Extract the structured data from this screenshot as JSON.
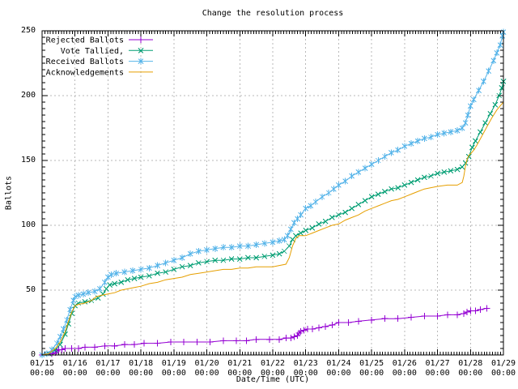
{
  "page": {
    "background": "#ffffff",
    "text_color": "#000000"
  },
  "chart_data": {
    "type": "line",
    "title": "Change the resolution process",
    "xlabel": "Date/Time (UTC)",
    "ylabel": "Ballots",
    "grid": {
      "show": true,
      "color": "#b8b8b8"
    },
    "border_color": "#000000",
    "legend_position": "top-left-inside",
    "x_axis": {
      "range_days": [
        0,
        14
      ],
      "tick_dates": [
        "01/15",
        "01/16",
        "01/17",
        "01/18",
        "01/19",
        "01/20",
        "01/21",
        "01/22",
        "01/23",
        "01/24",
        "01/25",
        "01/26",
        "01/27",
        "01/28",
        "01/29"
      ],
      "tick_time": "00:00",
      "minor_ticks_per_day": 12
    },
    "y_axis": {
      "range": [
        0,
        250
      ],
      "ticks": [
        0,
        50,
        100,
        150,
        200,
        250
      ],
      "minor_step": 5
    },
    "series": [
      {
        "name": "Rejected Ballots",
        "color": "#9400D3",
        "marker": "plus",
        "points": [
          [
            0,
            0
          ],
          [
            0.3,
            1
          ],
          [
            0.4,
            2
          ],
          [
            0.45,
            3
          ],
          [
            0.5,
            4
          ],
          [
            0.6,
            4
          ],
          [
            0.7,
            5
          ],
          [
            0.9,
            5
          ],
          [
            1.1,
            5
          ],
          [
            1.3,
            6
          ],
          [
            1.6,
            6
          ],
          [
            1.9,
            7
          ],
          [
            2.2,
            7
          ],
          [
            2.5,
            8
          ],
          [
            2.8,
            8
          ],
          [
            3.1,
            9
          ],
          [
            3.5,
            9
          ],
          [
            3.9,
            10
          ],
          [
            4.3,
            10
          ],
          [
            4.7,
            10
          ],
          [
            5.1,
            10
          ],
          [
            5.5,
            11
          ],
          [
            5.9,
            11
          ],
          [
            6.2,
            11
          ],
          [
            6.5,
            12
          ],
          [
            6.9,
            12
          ],
          [
            7.2,
            12
          ],
          [
            7.4,
            13
          ],
          [
            7.55,
            13
          ],
          [
            7.65,
            14
          ],
          [
            7.75,
            15
          ],
          [
            7.8,
            17
          ],
          [
            7.85,
            18
          ],
          [
            7.95,
            19
          ],
          [
            8.05,
            20
          ],
          [
            8.2,
            20
          ],
          [
            8.4,
            21
          ],
          [
            8.6,
            22
          ],
          [
            8.8,
            23
          ],
          [
            9.0,
            25
          ],
          [
            9.3,
            25
          ],
          [
            9.6,
            26
          ],
          [
            10.0,
            27
          ],
          [
            10.4,
            28
          ],
          [
            10.8,
            28
          ],
          [
            11.2,
            29
          ],
          [
            11.6,
            30
          ],
          [
            12.0,
            30
          ],
          [
            12.3,
            31
          ],
          [
            12.6,
            31
          ],
          [
            12.8,
            32
          ],
          [
            12.9,
            33
          ],
          [
            13.0,
            34
          ],
          [
            13.15,
            34
          ],
          [
            13.3,
            35
          ],
          [
            13.5,
            36
          ]
        ]
      },
      {
        "name": "Vote Tallied,",
        "color": "#009E73",
        "marker": "cross",
        "points": [
          [
            0,
            0
          ],
          [
            0.2,
            1
          ],
          [
            0.4,
            4
          ],
          [
            0.55,
            8
          ],
          [
            0.7,
            16
          ],
          [
            0.8,
            24
          ],
          [
            0.9,
            32
          ],
          [
            1.0,
            38
          ],
          [
            1.1,
            40
          ],
          [
            1.3,
            41
          ],
          [
            1.5,
            42
          ],
          [
            1.7,
            44
          ],
          [
            1.85,
            47
          ],
          [
            1.95,
            51
          ],
          [
            2.05,
            54
          ],
          [
            2.2,
            55
          ],
          [
            2.4,
            56
          ],
          [
            2.6,
            58
          ],
          [
            2.8,
            59
          ],
          [
            3.0,
            60
          ],
          [
            3.25,
            61
          ],
          [
            3.5,
            63
          ],
          [
            3.75,
            64
          ],
          [
            4.0,
            66
          ],
          [
            4.25,
            68
          ],
          [
            4.5,
            69
          ],
          [
            4.75,
            71
          ],
          [
            5.0,
            72
          ],
          [
            5.25,
            73
          ],
          [
            5.5,
            73
          ],
          [
            5.75,
            74
          ],
          [
            6.0,
            74
          ],
          [
            6.25,
            75
          ],
          [
            6.5,
            75
          ],
          [
            6.75,
            76
          ],
          [
            7.0,
            77
          ],
          [
            7.2,
            78
          ],
          [
            7.35,
            80
          ],
          [
            7.5,
            84
          ],
          [
            7.6,
            89
          ],
          [
            7.7,
            92
          ],
          [
            7.85,
            94
          ],
          [
            8.0,
            96
          ],
          [
            8.2,
            98
          ],
          [
            8.4,
            101
          ],
          [
            8.6,
            103
          ],
          [
            8.8,
            106
          ],
          [
            9.0,
            108
          ],
          [
            9.2,
            110
          ],
          [
            9.4,
            113
          ],
          [
            9.6,
            116
          ],
          [
            9.8,
            119
          ],
          [
            10.0,
            122
          ],
          [
            10.2,
            124
          ],
          [
            10.4,
            126
          ],
          [
            10.6,
            128
          ],
          [
            10.8,
            129
          ],
          [
            11.0,
            131
          ],
          [
            11.2,
            133
          ],
          [
            11.4,
            135
          ],
          [
            11.6,
            137
          ],
          [
            11.8,
            138
          ],
          [
            12.0,
            140
          ],
          [
            12.2,
            141
          ],
          [
            12.4,
            142
          ],
          [
            12.6,
            143
          ],
          [
            12.75,
            145
          ],
          [
            12.85,
            148
          ],
          [
            12.95,
            153
          ],
          [
            13.05,
            160
          ],
          [
            13.15,
            165
          ],
          [
            13.3,
            172
          ],
          [
            13.45,
            179
          ],
          [
            13.6,
            186
          ],
          [
            13.75,
            193
          ],
          [
            13.87,
            200
          ],
          [
            13.95,
            206
          ],
          [
            14.0,
            211
          ]
        ]
      },
      {
        "name": "Received Ballots",
        "color": "#56B4E9",
        "marker": "star",
        "points": [
          [
            0,
            0
          ],
          [
            0.15,
            1
          ],
          [
            0.3,
            4
          ],
          [
            0.45,
            9
          ],
          [
            0.55,
            14
          ],
          [
            0.65,
            20
          ],
          [
            0.75,
            27
          ],
          [
            0.85,
            35
          ],
          [
            0.95,
            42
          ],
          [
            1.0,
            45
          ],
          [
            1.1,
            46
          ],
          [
            1.25,
            47
          ],
          [
            1.4,
            48
          ],
          [
            1.6,
            49
          ],
          [
            1.75,
            51
          ],
          [
            1.9,
            56
          ],
          [
            2.0,
            60
          ],
          [
            2.1,
            62
          ],
          [
            2.25,
            63
          ],
          [
            2.5,
            64
          ],
          [
            2.75,
            65
          ],
          [
            3.0,
            66
          ],
          [
            3.25,
            67
          ],
          [
            3.5,
            69
          ],
          [
            3.75,
            71
          ],
          [
            4.0,
            73
          ],
          [
            4.25,
            75
          ],
          [
            4.5,
            78
          ],
          [
            4.75,
            80
          ],
          [
            5.0,
            81
          ],
          [
            5.25,
            82
          ],
          [
            5.5,
            83
          ],
          [
            5.75,
            83
          ],
          [
            6.0,
            84
          ],
          [
            6.25,
            84
          ],
          [
            6.5,
            85
          ],
          [
            6.75,
            86
          ],
          [
            7.0,
            87
          ],
          [
            7.2,
            88
          ],
          [
            7.35,
            89
          ],
          [
            7.45,
            92
          ],
          [
            7.55,
            97
          ],
          [
            7.65,
            102
          ],
          [
            7.75,
            105
          ],
          [
            7.85,
            108
          ],
          [
            8.0,
            113
          ],
          [
            8.15,
            115
          ],
          [
            8.3,
            118
          ],
          [
            8.5,
            122
          ],
          [
            8.7,
            125
          ],
          [
            8.85,
            128
          ],
          [
            9.0,
            131
          ],
          [
            9.2,
            134
          ],
          [
            9.4,
            138
          ],
          [
            9.6,
            141
          ],
          [
            9.8,
            144
          ],
          [
            10.0,
            147
          ],
          [
            10.2,
            150
          ],
          [
            10.4,
            153
          ],
          [
            10.6,
            156
          ],
          [
            10.8,
            158
          ],
          [
            11.0,
            161
          ],
          [
            11.2,
            163
          ],
          [
            11.4,
            165
          ],
          [
            11.6,
            167
          ],
          [
            11.8,
            168
          ],
          [
            12.0,
            170
          ],
          [
            12.2,
            171
          ],
          [
            12.4,
            172
          ],
          [
            12.6,
            173
          ],
          [
            12.75,
            175
          ],
          [
            12.85,
            179
          ],
          [
            12.92,
            185
          ],
          [
            13.0,
            192
          ],
          [
            13.1,
            197
          ],
          [
            13.25,
            204
          ],
          [
            13.4,
            211
          ],
          [
            13.55,
            219
          ],
          [
            13.7,
            227
          ],
          [
            13.8,
            233
          ],
          [
            13.9,
            239
          ],
          [
            13.97,
            246
          ],
          [
            14.0,
            249
          ]
        ]
      },
      {
        "name": "Acknowledgements",
        "color": "#E69F00",
        "marker": "none",
        "points": [
          [
            0,
            0
          ],
          [
            0.2,
            1
          ],
          [
            0.4,
            5
          ],
          [
            0.55,
            10
          ],
          [
            0.7,
            18
          ],
          [
            0.8,
            26
          ],
          [
            0.9,
            33
          ],
          [
            1.0,
            38
          ],
          [
            1.1,
            39
          ],
          [
            1.3,
            40
          ],
          [
            1.5,
            42
          ],
          [
            1.65,
            45
          ],
          [
            1.8,
            46
          ],
          [
            2.0,
            47
          ],
          [
            2.2,
            48
          ],
          [
            2.4,
            50
          ],
          [
            2.6,
            51
          ],
          [
            2.8,
            52
          ],
          [
            3.0,
            53
          ],
          [
            3.25,
            55
          ],
          [
            3.5,
            56
          ],
          [
            3.75,
            58
          ],
          [
            4.0,
            59
          ],
          [
            4.25,
            60
          ],
          [
            4.5,
            62
          ],
          [
            4.75,
            63
          ],
          [
            5.0,
            64
          ],
          [
            5.25,
            65
          ],
          [
            5.5,
            66
          ],
          [
            5.75,
            66
          ],
          [
            6.0,
            67
          ],
          [
            6.25,
            67
          ],
          [
            6.5,
            68
          ],
          [
            6.75,
            68
          ],
          [
            7.0,
            68
          ],
          [
            7.2,
            69
          ],
          [
            7.4,
            70
          ],
          [
            7.5,
            75
          ],
          [
            7.6,
            84
          ],
          [
            7.7,
            90
          ],
          [
            7.8,
            92
          ],
          [
            8.0,
            92
          ],
          [
            8.2,
            94
          ],
          [
            8.4,
            96
          ],
          [
            8.6,
            98
          ],
          [
            8.8,
            100
          ],
          [
            9.0,
            101
          ],
          [
            9.2,
            104
          ],
          [
            9.4,
            106
          ],
          [
            9.6,
            108
          ],
          [
            9.8,
            111
          ],
          [
            10.0,
            113
          ],
          [
            10.2,
            115
          ],
          [
            10.4,
            117
          ],
          [
            10.6,
            119
          ],
          [
            10.8,
            120
          ],
          [
            11.0,
            122
          ],
          [
            11.2,
            124
          ],
          [
            11.4,
            126
          ],
          [
            11.6,
            128
          ],
          [
            11.8,
            129
          ],
          [
            12.0,
            130
          ],
          [
            12.3,
            131
          ],
          [
            12.6,
            131
          ],
          [
            12.75,
            133
          ],
          [
            12.8,
            138
          ],
          [
            12.85,
            146
          ],
          [
            12.9,
            151
          ],
          [
            12.95,
            154
          ],
          [
            13.0,
            155
          ],
          [
            13.1,
            158
          ],
          [
            13.2,
            162
          ],
          [
            13.35,
            169
          ],
          [
            13.5,
            176
          ],
          [
            13.65,
            183
          ],
          [
            13.8,
            189
          ],
          [
            13.9,
            192
          ],
          [
            14.0,
            195
          ]
        ]
      }
    ]
  }
}
